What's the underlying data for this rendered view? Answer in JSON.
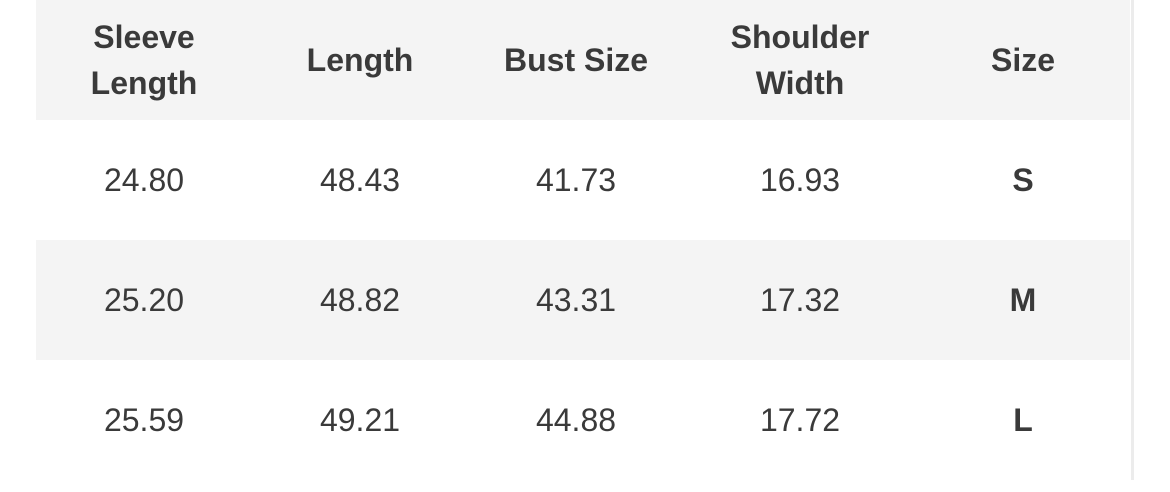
{
  "table": {
    "header": [
      "Sleeve Length",
      "Length",
      "Bust Size",
      "Shoulder Width",
      "Size"
    ],
    "rows": [
      [
        "24.80",
        "48.43",
        "41.73",
        "16.93",
        "S"
      ],
      [
        "25.20",
        "48.82",
        "43.31",
        "17.32",
        "M"
      ],
      [
        "25.59",
        "49.21",
        "44.88",
        "17.72",
        "L"
      ]
    ]
  }
}
